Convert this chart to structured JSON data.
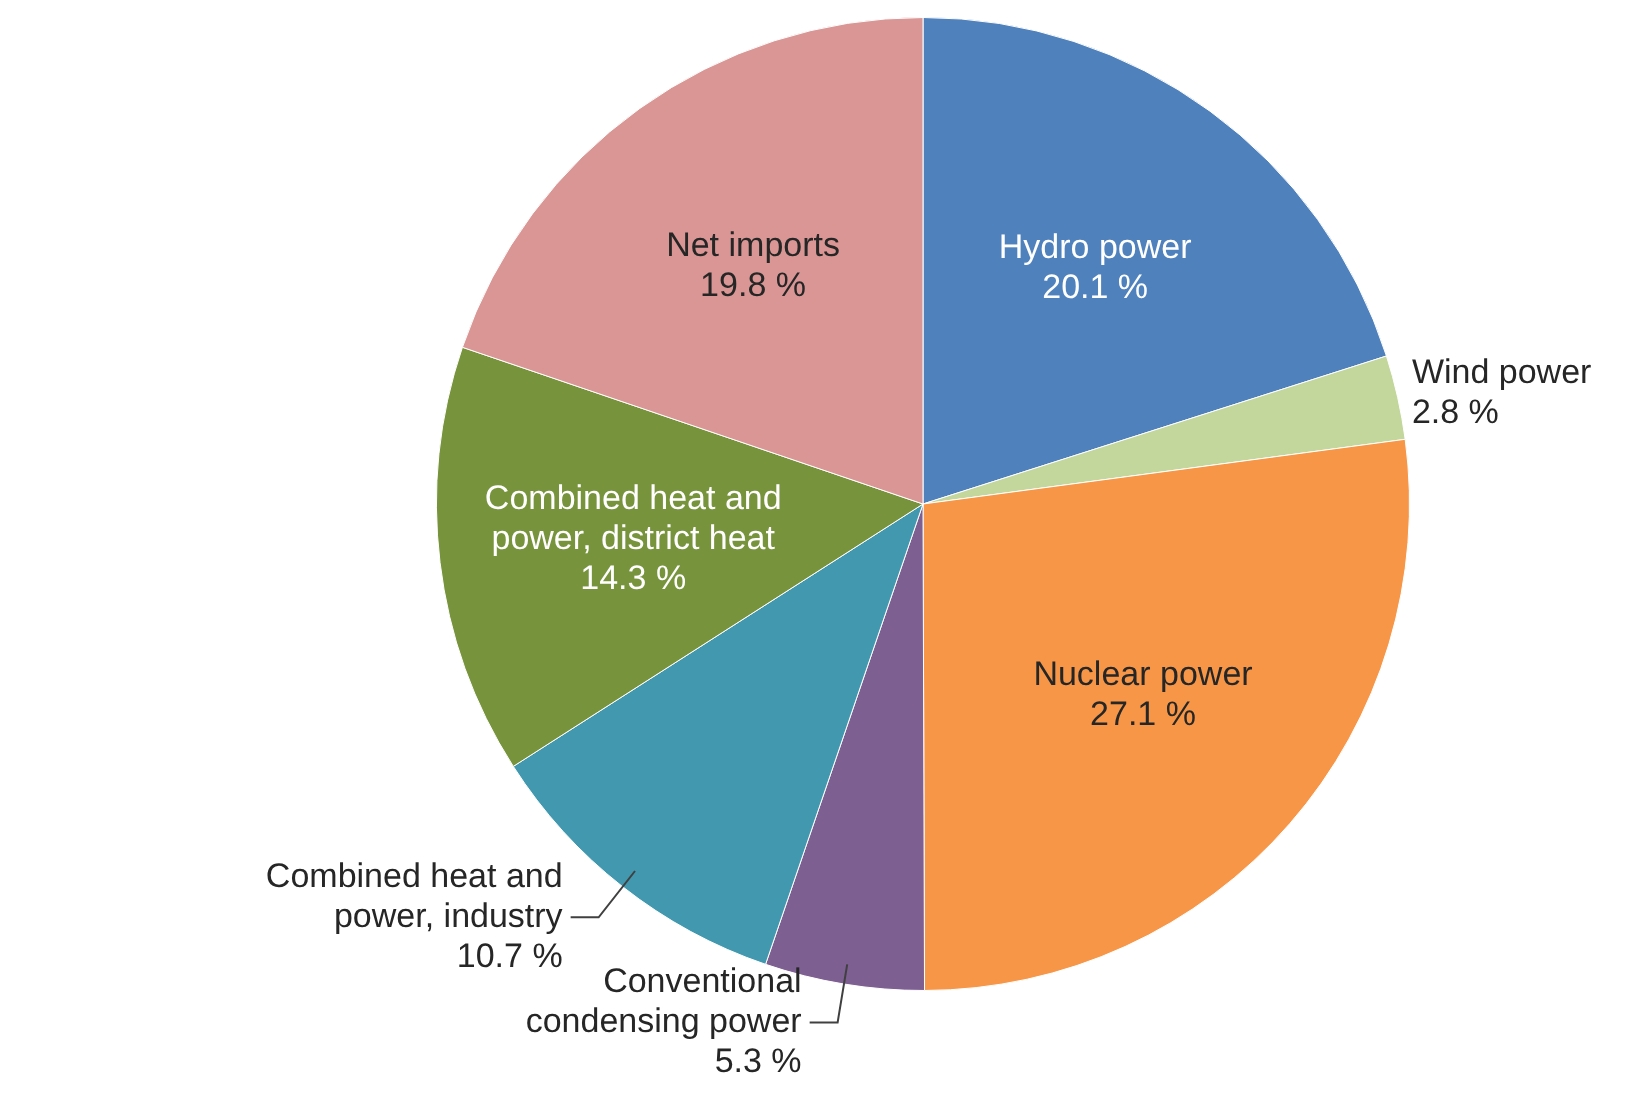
{
  "chart_data": {
    "type": "pie",
    "categories": [
      "Hydro power",
      "Wind power",
      "Nuclear power",
      "Conventional condensing power",
      "Combined heat and power, industry",
      "Combined heat and power, district heat",
      "Net imports"
    ],
    "values": [
      20.1,
      2.8,
      27.1,
      5.3,
      10.7,
      14.3,
      19.8
    ],
    "value_labels": [
      "20.1 %",
      "2.8 %",
      "27.1 %",
      "5.3 %",
      "10.7 %",
      "14.3 %",
      "19.8 %"
    ],
    "colors": [
      "#4f81bd",
      "#c3d69b",
      "#f79646",
      "#7d5f92",
      "#4198af",
      "#77933c",
      "#d99694"
    ],
    "legend": false
  }
}
